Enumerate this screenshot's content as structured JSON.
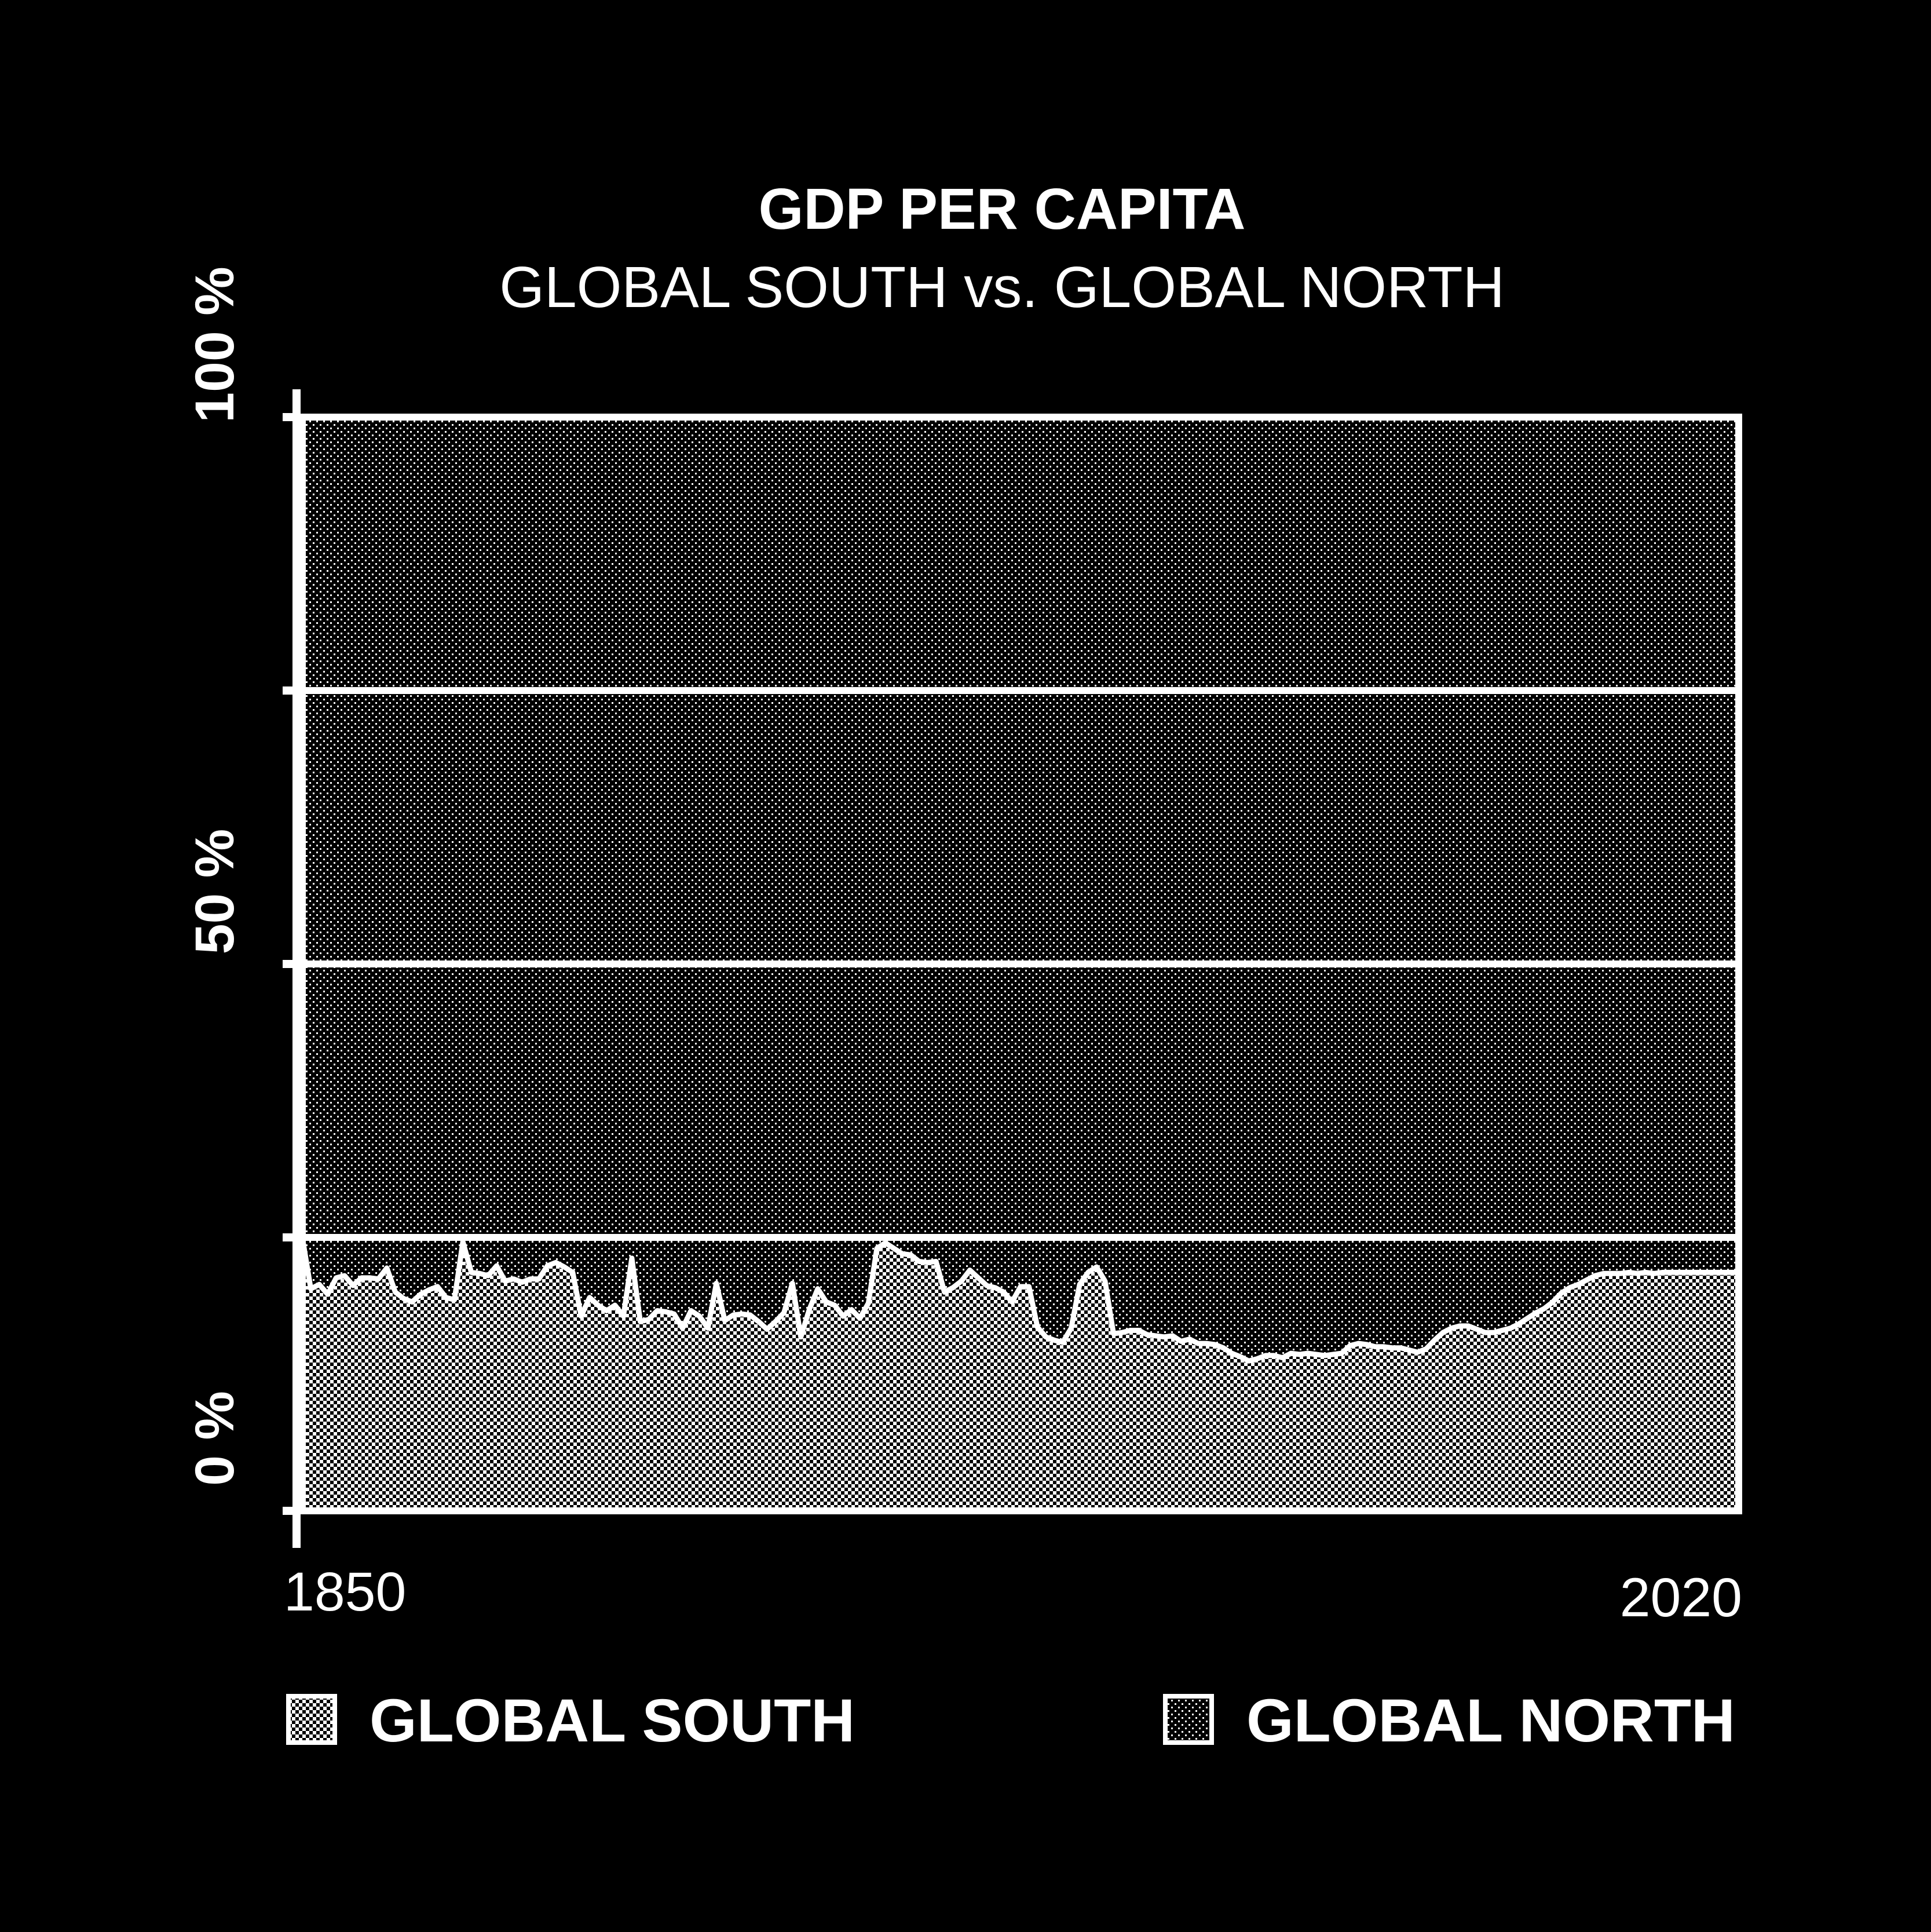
{
  "chart_data": {
    "type": "area",
    "stacked": true,
    "normalized_percent": true,
    "title": "GDP PER CAPITA",
    "subtitle": "GLOBAL SOUTH vs. GLOBAL NORTH",
    "x_labels": {
      "start": "1850",
      "end": "2020"
    },
    "y_ticks": [
      {
        "value": 0,
        "label": "0 %"
      },
      {
        "value": 25,
        "label": ""
      },
      {
        "value": 50,
        "label": "50 %"
      },
      {
        "value": 75,
        "label": ""
      },
      {
        "value": 100,
        "label": "100 %"
      }
    ],
    "xlim": [
      1850,
      2020
    ],
    "ylim": [
      0,
      100
    ],
    "grid": true,
    "legend_position": "bottom",
    "series": [
      {
        "name": "GLOBAL SOUTH",
        "legend_label": "GLOBAL SOUTH",
        "fill": "#ffffff",
        "pattern": "dense-dots"
      },
      {
        "name": "GLOBAL NORTH",
        "legend_label": "GLOBAL NORTH",
        "fill": "#ffffff",
        "pattern": "sparse-dots"
      }
    ],
    "south_share": [
      [
        1850,
        25.0
      ],
      [
        1851,
        20.3
      ],
      [
        1852,
        20.7
      ],
      [
        1853,
        19.8
      ],
      [
        1854,
        21.3
      ],
      [
        1855,
        21.5
      ],
      [
        1856,
        20.6
      ],
      [
        1857,
        21.3
      ],
      [
        1858,
        21.3
      ],
      [
        1859,
        21.2
      ],
      [
        1860,
        22.2
      ],
      [
        1861,
        20.0
      ],
      [
        1862,
        19.4
      ],
      [
        1863,
        19.1
      ],
      [
        1864,
        19.8
      ],
      [
        1865,
        20.2
      ],
      [
        1866,
        20.5
      ],
      [
        1867,
        19.5
      ],
      [
        1868,
        19.3
      ],
      [
        1869,
        24.6
      ],
      [
        1870,
        21.8
      ],
      [
        1871,
        21.7
      ],
      [
        1872,
        21.5
      ],
      [
        1873,
        22.4
      ],
      [
        1874,
        21.0
      ],
      [
        1875,
        21.2
      ],
      [
        1876,
        20.9
      ],
      [
        1877,
        21.2
      ],
      [
        1878,
        21.2
      ],
      [
        1879,
        22.4
      ],
      [
        1880,
        22.7
      ],
      [
        1881,
        22.3
      ],
      [
        1882,
        21.8
      ],
      [
        1883,
        17.8
      ],
      [
        1884,
        19.5
      ],
      [
        1885,
        18.8
      ],
      [
        1886,
        18.3
      ],
      [
        1887,
        18.8
      ],
      [
        1888,
        17.8
      ],
      [
        1889,
        23.1
      ],
      [
        1890,
        17.3
      ],
      [
        1891,
        17.5
      ],
      [
        1892,
        18.3
      ],
      [
        1893,
        18.2
      ],
      [
        1894,
        18.0
      ],
      [
        1895,
        16.7
      ],
      [
        1896,
        18.3
      ],
      [
        1897,
        17.8
      ],
      [
        1898,
        16.7
      ],
      [
        1899,
        20.8
      ],
      [
        1900,
        17.4
      ],
      [
        1901,
        17.9
      ],
      [
        1902,
        18.0
      ],
      [
        1903,
        17.9
      ],
      [
        1904,
        17.3
      ],
      [
        1905,
        16.6
      ],
      [
        1906,
        17.3
      ],
      [
        1907,
        18.1
      ],
      [
        1908,
        20.8
      ],
      [
        1909,
        15.9
      ],
      [
        1910,
        18.4
      ],
      [
        1911,
        20.3
      ],
      [
        1912,
        19.1
      ],
      [
        1913,
        18.8
      ],
      [
        1914,
        17.8
      ],
      [
        1915,
        18.4
      ],
      [
        1916,
        17.6
      ],
      [
        1917,
        19.0
      ],
      [
        1918,
        24.0
      ],
      [
        1919,
        24.5
      ],
      [
        1920,
        24.0
      ],
      [
        1921,
        23.5
      ],
      [
        1922,
        23.4
      ],
      [
        1923,
        22.8
      ],
      [
        1924,
        22.7
      ],
      [
        1925,
        22.8
      ],
      [
        1926,
        20.0
      ],
      [
        1927,
        20.4
      ],
      [
        1928,
        21.0
      ],
      [
        1929,
        22.0
      ],
      [
        1930,
        21.3
      ],
      [
        1931,
        20.6
      ],
      [
        1932,
        20.4
      ],
      [
        1933,
        20.0
      ],
      [
        1934,
        19.1
      ],
      [
        1935,
        20.5
      ],
      [
        1936,
        20.5
      ],
      [
        1937,
        16.8
      ],
      [
        1938,
        15.9
      ],
      [
        1939,
        15.6
      ],
      [
        1940,
        15.4
      ],
      [
        1941,
        16.7
      ],
      [
        1942,
        20.7
      ],
      [
        1943,
        21.8
      ],
      [
        1944,
        22.3
      ],
      [
        1945,
        21.0
      ],
      [
        1946,
        16.2
      ],
      [
        1947,
        16.3
      ],
      [
        1948,
        16.5
      ],
      [
        1949,
        16.5
      ],
      [
        1950,
        16.1
      ],
      [
        1951,
        16.0
      ],
      [
        1952,
        15.9
      ],
      [
        1953,
        16.0
      ],
      [
        1954,
        15.5
      ],
      [
        1955,
        15.7
      ],
      [
        1956,
        15.3
      ],
      [
        1957,
        15.3
      ],
      [
        1958,
        15.2
      ],
      [
        1959,
        14.9
      ],
      [
        1960,
        14.4
      ],
      [
        1961,
        14.1
      ],
      [
        1962,
        13.7
      ],
      [
        1963,
        13.9
      ],
      [
        1964,
        14.2
      ],
      [
        1965,
        14.2
      ],
      [
        1966,
        14.0
      ],
      [
        1967,
        14.4
      ],
      [
        1968,
        14.3
      ],
      [
        1969,
        14.4
      ],
      [
        1970,
        14.3
      ],
      [
        1971,
        14.2
      ],
      [
        1972,
        14.3
      ],
      [
        1973,
        14.4
      ],
      [
        1974,
        15.1
      ],
      [
        1975,
        15.3
      ],
      [
        1976,
        15.2
      ],
      [
        1977,
        15.0
      ],
      [
        1978,
        15.0
      ],
      [
        1979,
        14.9
      ],
      [
        1980,
        14.9
      ],
      [
        1981,
        14.7
      ],
      [
        1982,
        14.5
      ],
      [
        1983,
        14.8
      ],
      [
        1984,
        15.6
      ],
      [
        1985,
        16.3
      ],
      [
        1986,
        16.7
      ],
      [
        1987,
        16.9
      ],
      [
        1988,
        16.9
      ],
      [
        1989,
        16.6
      ],
      [
        1990,
        16.3
      ],
      [
        1991,
        16.3
      ],
      [
        1992,
        16.5
      ],
      [
        1993,
        16.7
      ],
      [
        1994,
        17.1
      ],
      [
        1995,
        17.6
      ],
      [
        1996,
        18.1
      ],
      [
        1997,
        18.5
      ],
      [
        1998,
        19.1
      ],
      [
        1999,
        19.9
      ],
      [
        2000,
        20.4
      ],
      [
        2001,
        20.7
      ],
      [
        2002,
        21.1
      ],
      [
        2003,
        21.5
      ],
      [
        2004,
        21.7
      ],
      [
        2005,
        21.7
      ],
      [
        2006,
        21.7
      ],
      [
        2007,
        21.8
      ],
      [
        2008,
        21.7
      ],
      [
        2009,
        21.8
      ],
      [
        2010,
        21.7
      ],
      [
        2011,
        21.8
      ],
      [
        2012,
        21.8
      ],
      [
        2013,
        21.8
      ],
      [
        2014,
        21.8
      ],
      [
        2015,
        21.8
      ],
      [
        2016,
        21.8
      ],
      [
        2017,
        21.8
      ],
      [
        2018,
        21.8
      ],
      [
        2019,
        21.8
      ],
      [
        2020,
        21.8
      ]
    ]
  }
}
